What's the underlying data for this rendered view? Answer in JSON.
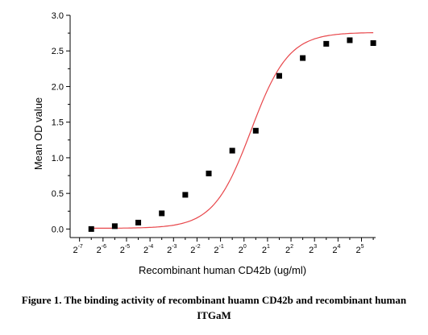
{
  "chart_data": {
    "type": "scatter",
    "title": "",
    "xlabel": "Recombinant human  CD42b (ug/ml)",
    "ylabel": "Mean OD value",
    "x_scale": "log2",
    "x_ticks": [
      {
        "base": "2",
        "exp": "-7"
      },
      {
        "base": "2",
        "exp": "-6"
      },
      {
        "base": "2",
        "exp": "-5"
      },
      {
        "base": "2",
        "exp": "-4"
      },
      {
        "base": "2",
        "exp": "-3"
      },
      {
        "base": "2",
        "exp": "-2"
      },
      {
        "base": "2",
        "exp": "-1"
      },
      {
        "base": "2",
        "exp": "0"
      },
      {
        "base": "2",
        "exp": "1"
      },
      {
        "base": "2",
        "exp": "2"
      },
      {
        "base": "2",
        "exp": "3"
      },
      {
        "base": "2",
        "exp": "4"
      },
      {
        "base": "2",
        "exp": "5"
      }
    ],
    "y_ticks": [
      "0.0",
      "0.5",
      "1.0",
      "1.5",
      "2.0",
      "2.5",
      "3.0"
    ],
    "xlim": [
      -7.4,
      5.6
    ],
    "ylim": [
      -0.12,
      3.0
    ],
    "points": [
      {
        "x": -6.5,
        "y": 0.0
      },
      {
        "x": -5.5,
        "y": 0.04
      },
      {
        "x": -4.5,
        "y": 0.09
      },
      {
        "x": -3.5,
        "y": 0.22
      },
      {
        "x": -2.5,
        "y": 0.48
      },
      {
        "x": -1.5,
        "y": 0.78
      },
      {
        "x": -0.5,
        "y": 1.1
      },
      {
        "x": 0.5,
        "y": 1.38
      },
      {
        "x": 1.5,
        "y": 2.15
      },
      {
        "x": 2.5,
        "y": 2.4
      },
      {
        "x": 3.5,
        "y": 2.6
      },
      {
        "x": 4.5,
        "y": 2.65
      },
      {
        "x": 5.5,
        "y": 2.61
      }
    ],
    "fit_curve": {
      "bottom": 0.01,
      "top": 2.76,
      "midpoint": 0.3,
      "slope": 0.8
    },
    "marker_color": "#000000",
    "curve_color": "#e8474b",
    "grid": false,
    "legend": "none"
  },
  "caption": {
    "line1": "Figure 1. The binding activity of recombinant huamn CD42b and recombinant human",
    "line2": "ITGaM"
  }
}
